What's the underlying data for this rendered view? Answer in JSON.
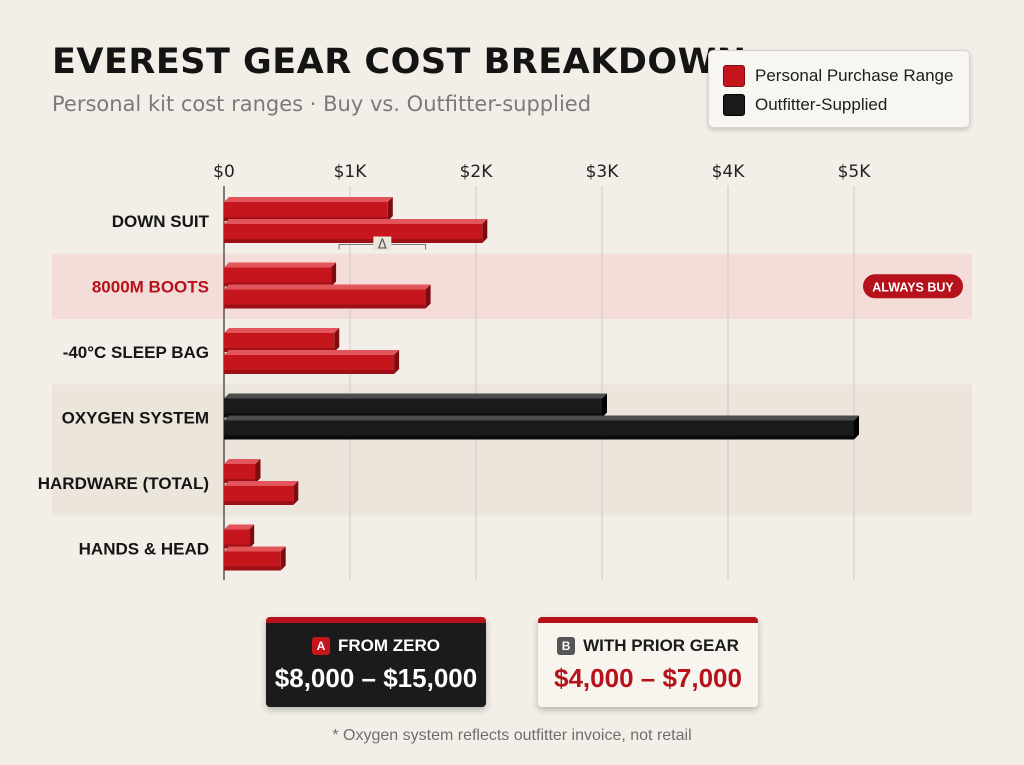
{
  "title": "EVEREST GEAR COST BREAKDOWN",
  "subtitle": "Personal kit cost ranges · Buy vs. Outfitter-supplied",
  "legend": [
    {
      "label": "Personal Purchase Range",
      "color": "#c5161e"
    },
    {
      "label": "Outfitter-Supplied",
      "color": "#1a1a1a"
    }
  ],
  "colors": {
    "personal": "#c5161e",
    "outfitter": "#1a1a1a",
    "highlight_band": "#f4dcd8",
    "alt_band": "#ebe5dc",
    "accent": "#b5121b"
  },
  "chart_data": {
    "type": "bar",
    "orientation": "horizontal",
    "xlim": [
      0,
      5000
    ],
    "xticks": [
      0,
      1000,
      2000,
      3000,
      4000,
      5000
    ],
    "xtick_labels": [
      "$0",
      "$1K",
      "$2K",
      "$3K",
      "$4K",
      "$5K"
    ],
    "grid": true,
    "legend_position": "top-right",
    "categories": [
      {
        "label": "DOWN SUIT",
        "low": 1300,
        "high": 2050,
        "supply": "personal",
        "band": "none"
      },
      {
        "label": "8000M BOOTS",
        "low": 850,
        "high": 1600,
        "supply": "personal",
        "band": "highlight",
        "badge": "ALWAYS BUY",
        "delta_marker": "Δ"
      },
      {
        "label": "-40°C SLEEP BAG",
        "low": 875,
        "high": 1350,
        "supply": "personal",
        "band": "none"
      },
      {
        "label": "OXYGEN SYSTEM",
        "low": 3000,
        "high": 5000,
        "supply": "outfitter",
        "band": "alt"
      },
      {
        "label": "HARDWARE (TOTAL)",
        "low": 250,
        "high": 550,
        "supply": "personal",
        "band": "alt"
      },
      {
        "label": "HANDS & HEAD",
        "low": 200,
        "high": 450,
        "supply": "personal",
        "band": "none"
      }
    ]
  },
  "callouts": [
    {
      "badge": "A",
      "label": "FROM ZERO",
      "value": "$8,000 – $15,000"
    },
    {
      "badge": "B",
      "label": "WITH PRIOR GEAR",
      "value": "$4,000 – $7,000"
    }
  ],
  "footnote": "* Oxygen system reflects outfitter invoice, not retail"
}
